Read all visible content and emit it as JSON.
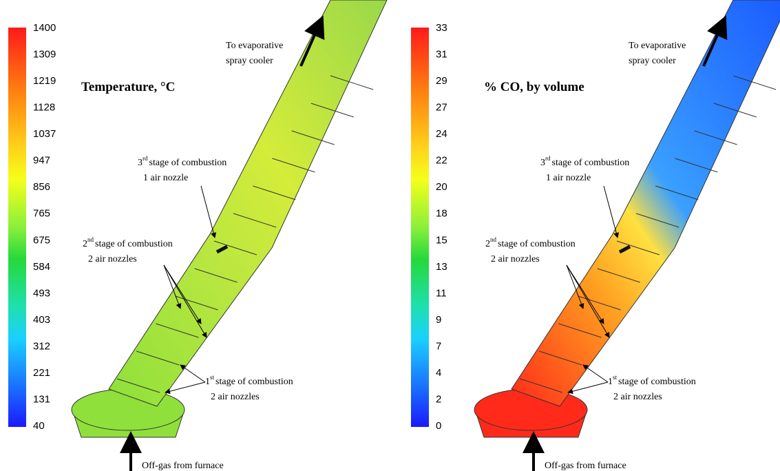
{
  "panels": [
    {
      "colorbar_ticks": [
        "1400",
        "1309",
        "1219",
        "1128",
        "1037",
        "947",
        "856",
        "765",
        "675",
        "584",
        "493",
        "403",
        "312",
        "221",
        "131",
        "40"
      ],
      "title": "Temperature, °C",
      "outlet_note": [
        "To evaporative",
        "spray cooler"
      ],
      "stage3": {
        "ordinal": "3",
        "suffix": "rd",
        "text": "stage of combustion",
        "detail": "1 air nozzle"
      },
      "stage2": {
        "ordinal": "2",
        "suffix": "nd",
        "text": "stage of combustion",
        "detail": "2 air nozzles"
      },
      "stage1": {
        "ordinal": "1",
        "suffix": "st",
        "text": "stage of combustion",
        "detail": "2 air nozzles"
      },
      "inlet_note": "Off-gas from furnace"
    },
    {
      "colorbar_ticks": [
        "33",
        "31",
        "29",
        "27",
        "24",
        "22",
        "20",
        "18",
        "15",
        "13",
        "11",
        "9",
        "7",
        "4",
        "2",
        "0"
      ],
      "title": "% CO, by volume",
      "outlet_note": [
        "To evaporative",
        "spray cooler"
      ],
      "stage3": {
        "ordinal": "3",
        "suffix": "rd",
        "text": "stage of combustion",
        "detail": "1 air nozzle"
      },
      "stage2": {
        "ordinal": "2",
        "suffix": "nd",
        "text": "stage of combustion",
        "detail": "2 air nozzles"
      },
      "stage1": {
        "ordinal": "1",
        "suffix": "st",
        "text": "stage of combustion",
        "detail": "2 air nozzles"
      },
      "inlet_note": "Off-gas from furnace"
    }
  ]
}
